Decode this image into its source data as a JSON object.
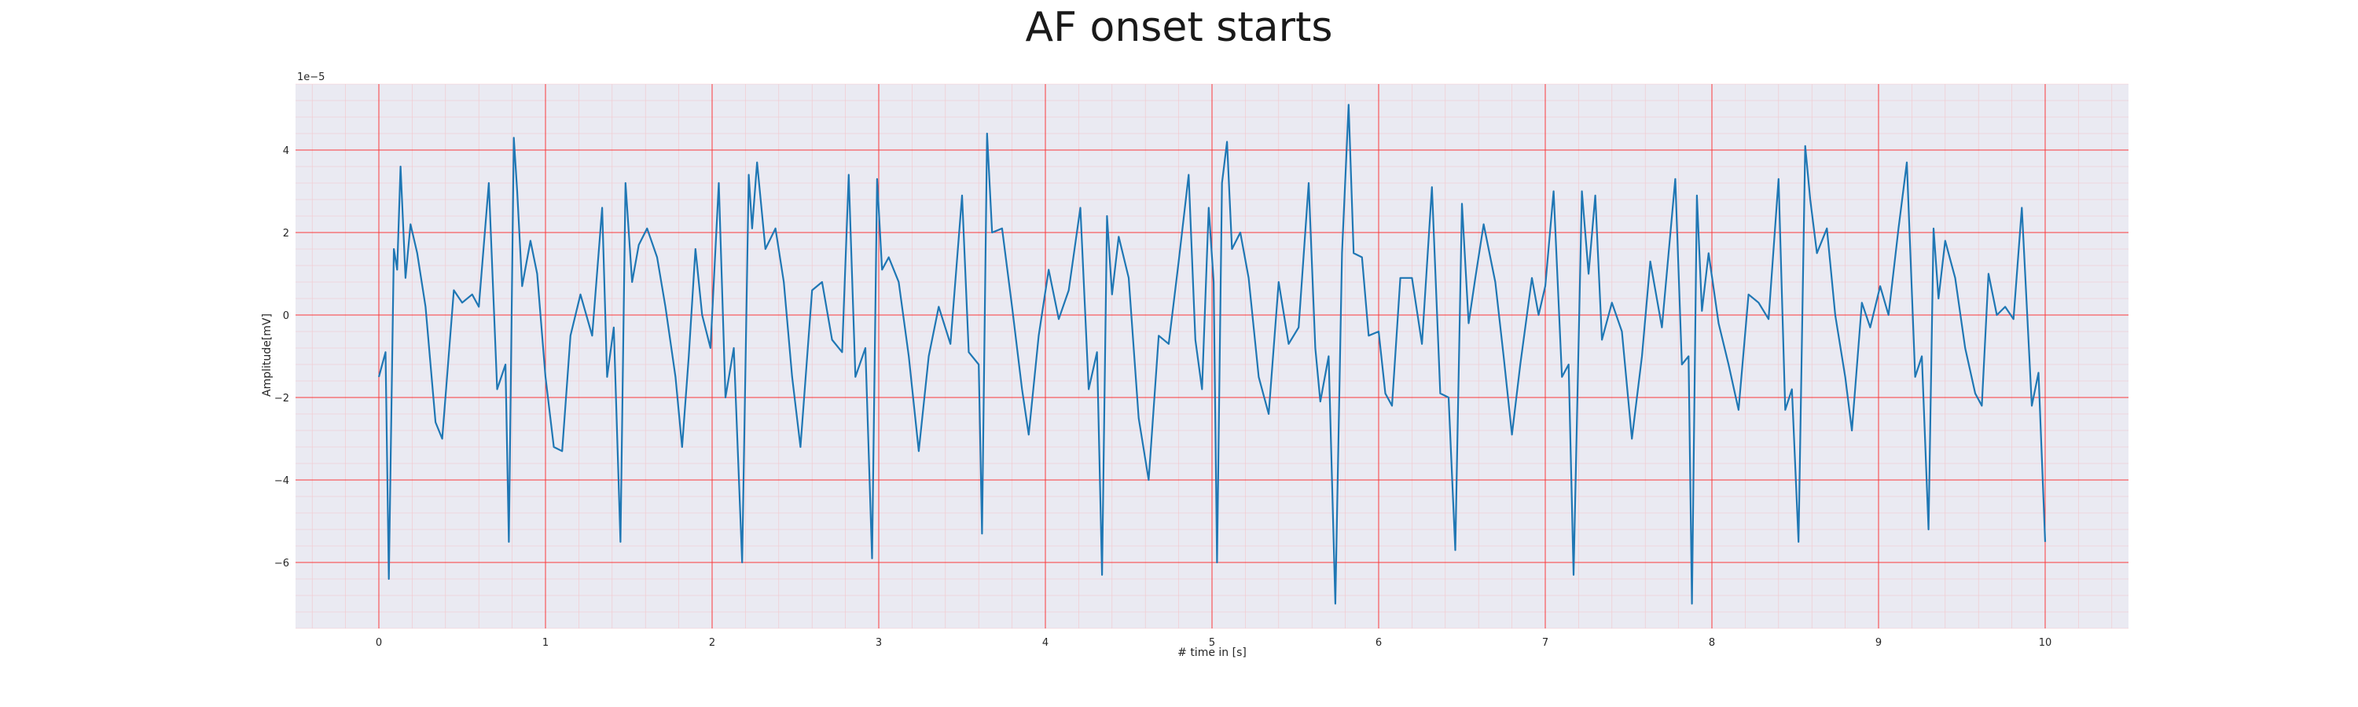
{
  "chart_data": {
    "type": "line",
    "title": "AF onset starts",
    "xlabel": "# time in [s]",
    "ylabel": "Amplitude[mV]",
    "y_offset_label": "1e−5",
    "xlim": [
      -0.5,
      10.5
    ],
    "ylim": [
      -7.6,
      5.6
    ],
    "x_ticks": [
      0,
      1,
      2,
      3,
      4,
      5,
      6,
      7,
      8,
      9,
      10
    ],
    "x_tick_labels": [
      "0",
      "1",
      "2",
      "3",
      "4",
      "5",
      "6",
      "7",
      "8",
      "9",
      "10"
    ],
    "y_ticks": [
      -6,
      -4,
      -2,
      0,
      2,
      4
    ],
    "y_tick_labels": [
      "−6",
      "−4",
      "−2",
      "0",
      "2",
      "4"
    ],
    "grid": true,
    "colors": {
      "background": "#eaeaf2",
      "major_grid": "#ff0000",
      "minor_grid": "#ff9a9a",
      "line": "#1f77b4"
    },
    "series": [
      {
        "values": [
          [
            0.0,
            -1.5
          ],
          [
            0.04,
            -0.9
          ],
          [
            0.06,
            -6.4
          ],
          [
            0.09,
            1.6
          ],
          [
            0.11,
            1.1
          ],
          [
            0.13,
            3.6
          ],
          [
            0.16,
            0.9
          ],
          [
            0.19,
            2.2
          ],
          [
            0.23,
            1.5
          ],
          [
            0.28,
            0.2
          ],
          [
            0.34,
            -2.6
          ],
          [
            0.38,
            -3.0
          ],
          [
            0.45,
            0.6
          ],
          [
            0.5,
            0.3
          ],
          [
            0.56,
            0.5
          ],
          [
            0.6,
            0.2
          ],
          [
            0.66,
            3.2
          ],
          [
            0.71,
            -1.8
          ],
          [
            0.76,
            -1.2
          ],
          [
            0.78,
            -5.5
          ],
          [
            0.81,
            4.3
          ],
          [
            0.83,
            3.0
          ],
          [
            0.86,
            0.7
          ],
          [
            0.91,
            1.8
          ],
          [
            0.95,
            1.0
          ],
          [
            1.0,
            -1.5
          ],
          [
            1.05,
            -3.2
          ],
          [
            1.1,
            -3.3
          ],
          [
            1.15,
            -0.5
          ],
          [
            1.21,
            0.5
          ],
          [
            1.28,
            -0.5
          ],
          [
            1.34,
            2.6
          ],
          [
            1.37,
            -1.5
          ],
          [
            1.41,
            -0.3
          ],
          [
            1.45,
            -5.5
          ],
          [
            1.48,
            3.2
          ],
          [
            1.52,
            0.8
          ],
          [
            1.56,
            1.7
          ],
          [
            1.61,
            2.1
          ],
          [
            1.67,
            1.4
          ],
          [
            1.72,
            0.2
          ],
          [
            1.78,
            -1.5
          ],
          [
            1.82,
            -3.2
          ],
          [
            1.86,
            -1.0
          ],
          [
            1.9,
            1.6
          ],
          [
            1.94,
            0.0
          ],
          [
            1.99,
            -0.8
          ],
          [
            2.04,
            3.2
          ],
          [
            2.08,
            -2.0
          ],
          [
            2.13,
            -0.8
          ],
          [
            2.18,
            -6.0
          ],
          [
            2.22,
            3.4
          ],
          [
            2.24,
            2.1
          ],
          [
            2.27,
            3.7
          ],
          [
            2.32,
            1.6
          ],
          [
            2.38,
            2.1
          ],
          [
            2.43,
            0.8
          ],
          [
            2.48,
            -1.5
          ],
          [
            2.53,
            -3.2
          ],
          [
            2.6,
            0.6
          ],
          [
            2.66,
            0.8
          ],
          [
            2.72,
            -0.6
          ],
          [
            2.78,
            -0.9
          ],
          [
            2.82,
            3.4
          ],
          [
            2.86,
            -1.5
          ],
          [
            2.92,
            -0.8
          ],
          [
            2.96,
            -5.9
          ],
          [
            2.99,
            3.3
          ],
          [
            3.02,
            1.1
          ],
          [
            3.06,
            1.4
          ],
          [
            3.12,
            0.8
          ],
          [
            3.18,
            -1.0
          ],
          [
            3.24,
            -3.3
          ],
          [
            3.3,
            -1.0
          ],
          [
            3.36,
            0.2
          ],
          [
            3.43,
            -0.7
          ],
          [
            3.5,
            2.9
          ],
          [
            3.54,
            -0.9
          ],
          [
            3.6,
            -1.2
          ],
          [
            3.62,
            -5.3
          ],
          [
            3.65,
            4.4
          ],
          [
            3.68,
            2.0
          ],
          [
            3.74,
            2.1
          ],
          [
            3.8,
            0.2
          ],
          [
            3.86,
            -1.8
          ],
          [
            3.9,
            -2.9
          ],
          [
            3.96,
            -0.5
          ],
          [
            4.02,
            1.1
          ],
          [
            4.08,
            -0.1
          ],
          [
            4.14,
            0.6
          ],
          [
            4.21,
            2.6
          ],
          [
            4.26,
            -1.8
          ],
          [
            4.31,
            -0.9
          ],
          [
            4.34,
            -6.3
          ],
          [
            4.37,
            2.4
          ],
          [
            4.4,
            0.5
          ],
          [
            4.44,
            1.9
          ],
          [
            4.5,
            0.9
          ],
          [
            4.56,
            -2.5
          ],
          [
            4.62,
            -4.0
          ],
          [
            4.68,
            -0.5
          ],
          [
            4.74,
            -0.7
          ],
          [
            4.8,
            1.3
          ],
          [
            4.86,
            3.4
          ],
          [
            4.9,
            -0.6
          ],
          [
            4.94,
            -1.8
          ],
          [
            4.98,
            2.6
          ],
          [
            5.01,
            0.8
          ],
          [
            5.03,
            -6.0
          ],
          [
            5.06,
            3.2
          ],
          [
            5.09,
            4.2
          ],
          [
            5.12,
            1.6
          ],
          [
            5.17,
            2.0
          ],
          [
            5.22,
            0.9
          ],
          [
            5.28,
            -1.5
          ],
          [
            5.34,
            -2.4
          ],
          [
            5.4,
            0.8
          ],
          [
            5.46,
            -0.7
          ],
          [
            5.52,
            -0.3
          ],
          [
            5.58,
            3.2
          ],
          [
            5.62,
            -0.8
          ],
          [
            5.65,
            -2.1
          ],
          [
            5.7,
            -1.0
          ],
          [
            5.74,
            -7.0
          ],
          [
            5.78,
            1.5
          ],
          [
            5.82,
            5.1
          ],
          [
            5.85,
            1.5
          ],
          [
            5.9,
            1.4
          ],
          [
            5.94,
            -0.5
          ],
          [
            6.0,
            -0.4
          ],
          [
            6.04,
            -1.9
          ],
          [
            6.08,
            -2.2
          ],
          [
            6.13,
            0.9
          ],
          [
            6.2,
            0.9
          ],
          [
            6.26,
            -0.7
          ],
          [
            6.32,
            3.1
          ],
          [
            6.37,
            -1.9
          ],
          [
            6.42,
            -2.0
          ],
          [
            6.46,
            -5.7
          ],
          [
            6.5,
            2.7
          ],
          [
            6.54,
            -0.2
          ],
          [
            6.58,
            0.9
          ],
          [
            6.63,
            2.2
          ],
          [
            6.7,
            0.8
          ],
          [
            6.75,
            -1.0
          ],
          [
            6.8,
            -2.9
          ],
          [
            6.85,
            -1.2
          ],
          [
            6.92,
            0.9
          ],
          [
            6.96,
            0.0
          ],
          [
            7.0,
            0.7
          ],
          [
            7.05,
            3.0
          ],
          [
            7.1,
            -1.5
          ],
          [
            7.14,
            -1.2
          ],
          [
            7.17,
            -6.3
          ],
          [
            7.22,
            3.0
          ],
          [
            7.26,
            1.0
          ],
          [
            7.3,
            2.9
          ],
          [
            7.34,
            -0.6
          ],
          [
            7.4,
            0.3
          ],
          [
            7.46,
            -0.4
          ],
          [
            7.52,
            -3.0
          ],
          [
            7.58,
            -1.0
          ],
          [
            7.63,
            1.3
          ],
          [
            7.7,
            -0.3
          ],
          [
            7.78,
            3.3
          ],
          [
            7.82,
            -1.2
          ],
          [
            7.86,
            -1.0
          ],
          [
            7.88,
            -7.0
          ],
          [
            7.91,
            2.9
          ],
          [
            7.94,
            0.1
          ],
          [
            7.98,
            1.5
          ],
          [
            8.04,
            -0.2
          ],
          [
            8.1,
            -1.2
          ],
          [
            8.16,
            -2.3
          ],
          [
            8.22,
            0.5
          ],
          [
            8.28,
            0.3
          ],
          [
            8.34,
            -0.1
          ],
          [
            8.4,
            3.3
          ],
          [
            8.44,
            -2.3
          ],
          [
            8.48,
            -1.8
          ],
          [
            8.52,
            -5.5
          ],
          [
            8.56,
            4.1
          ],
          [
            8.59,
            2.8
          ],
          [
            8.63,
            1.5
          ],
          [
            8.69,
            2.1
          ],
          [
            8.74,
            0.0
          ],
          [
            8.8,
            -1.5
          ],
          [
            8.84,
            -2.8
          ],
          [
            8.9,
            0.3
          ],
          [
            8.95,
            -0.3
          ],
          [
            9.01,
            0.7
          ],
          [
            9.06,
            0.0
          ],
          [
            9.12,
            2.1
          ],
          [
            9.17,
            3.7
          ],
          [
            9.22,
            -1.5
          ],
          [
            9.26,
            -1.0
          ],
          [
            9.3,
            -5.2
          ],
          [
            9.33,
            2.1
          ],
          [
            9.36,
            0.4
          ],
          [
            9.4,
            1.8
          ],
          [
            9.46,
            0.9
          ],
          [
            9.52,
            -0.8
          ],
          [
            9.58,
            -1.9
          ],
          [
            9.62,
            -2.2
          ],
          [
            9.66,
            1.0
          ],
          [
            9.71,
            0.0
          ],
          [
            9.76,
            0.2
          ],
          [
            9.81,
            -0.1
          ],
          [
            9.86,
            2.6
          ],
          [
            9.92,
            -2.2
          ],
          [
            9.96,
            -1.4
          ],
          [
            10.0,
            -5.5
          ]
        ]
      }
    ]
  }
}
